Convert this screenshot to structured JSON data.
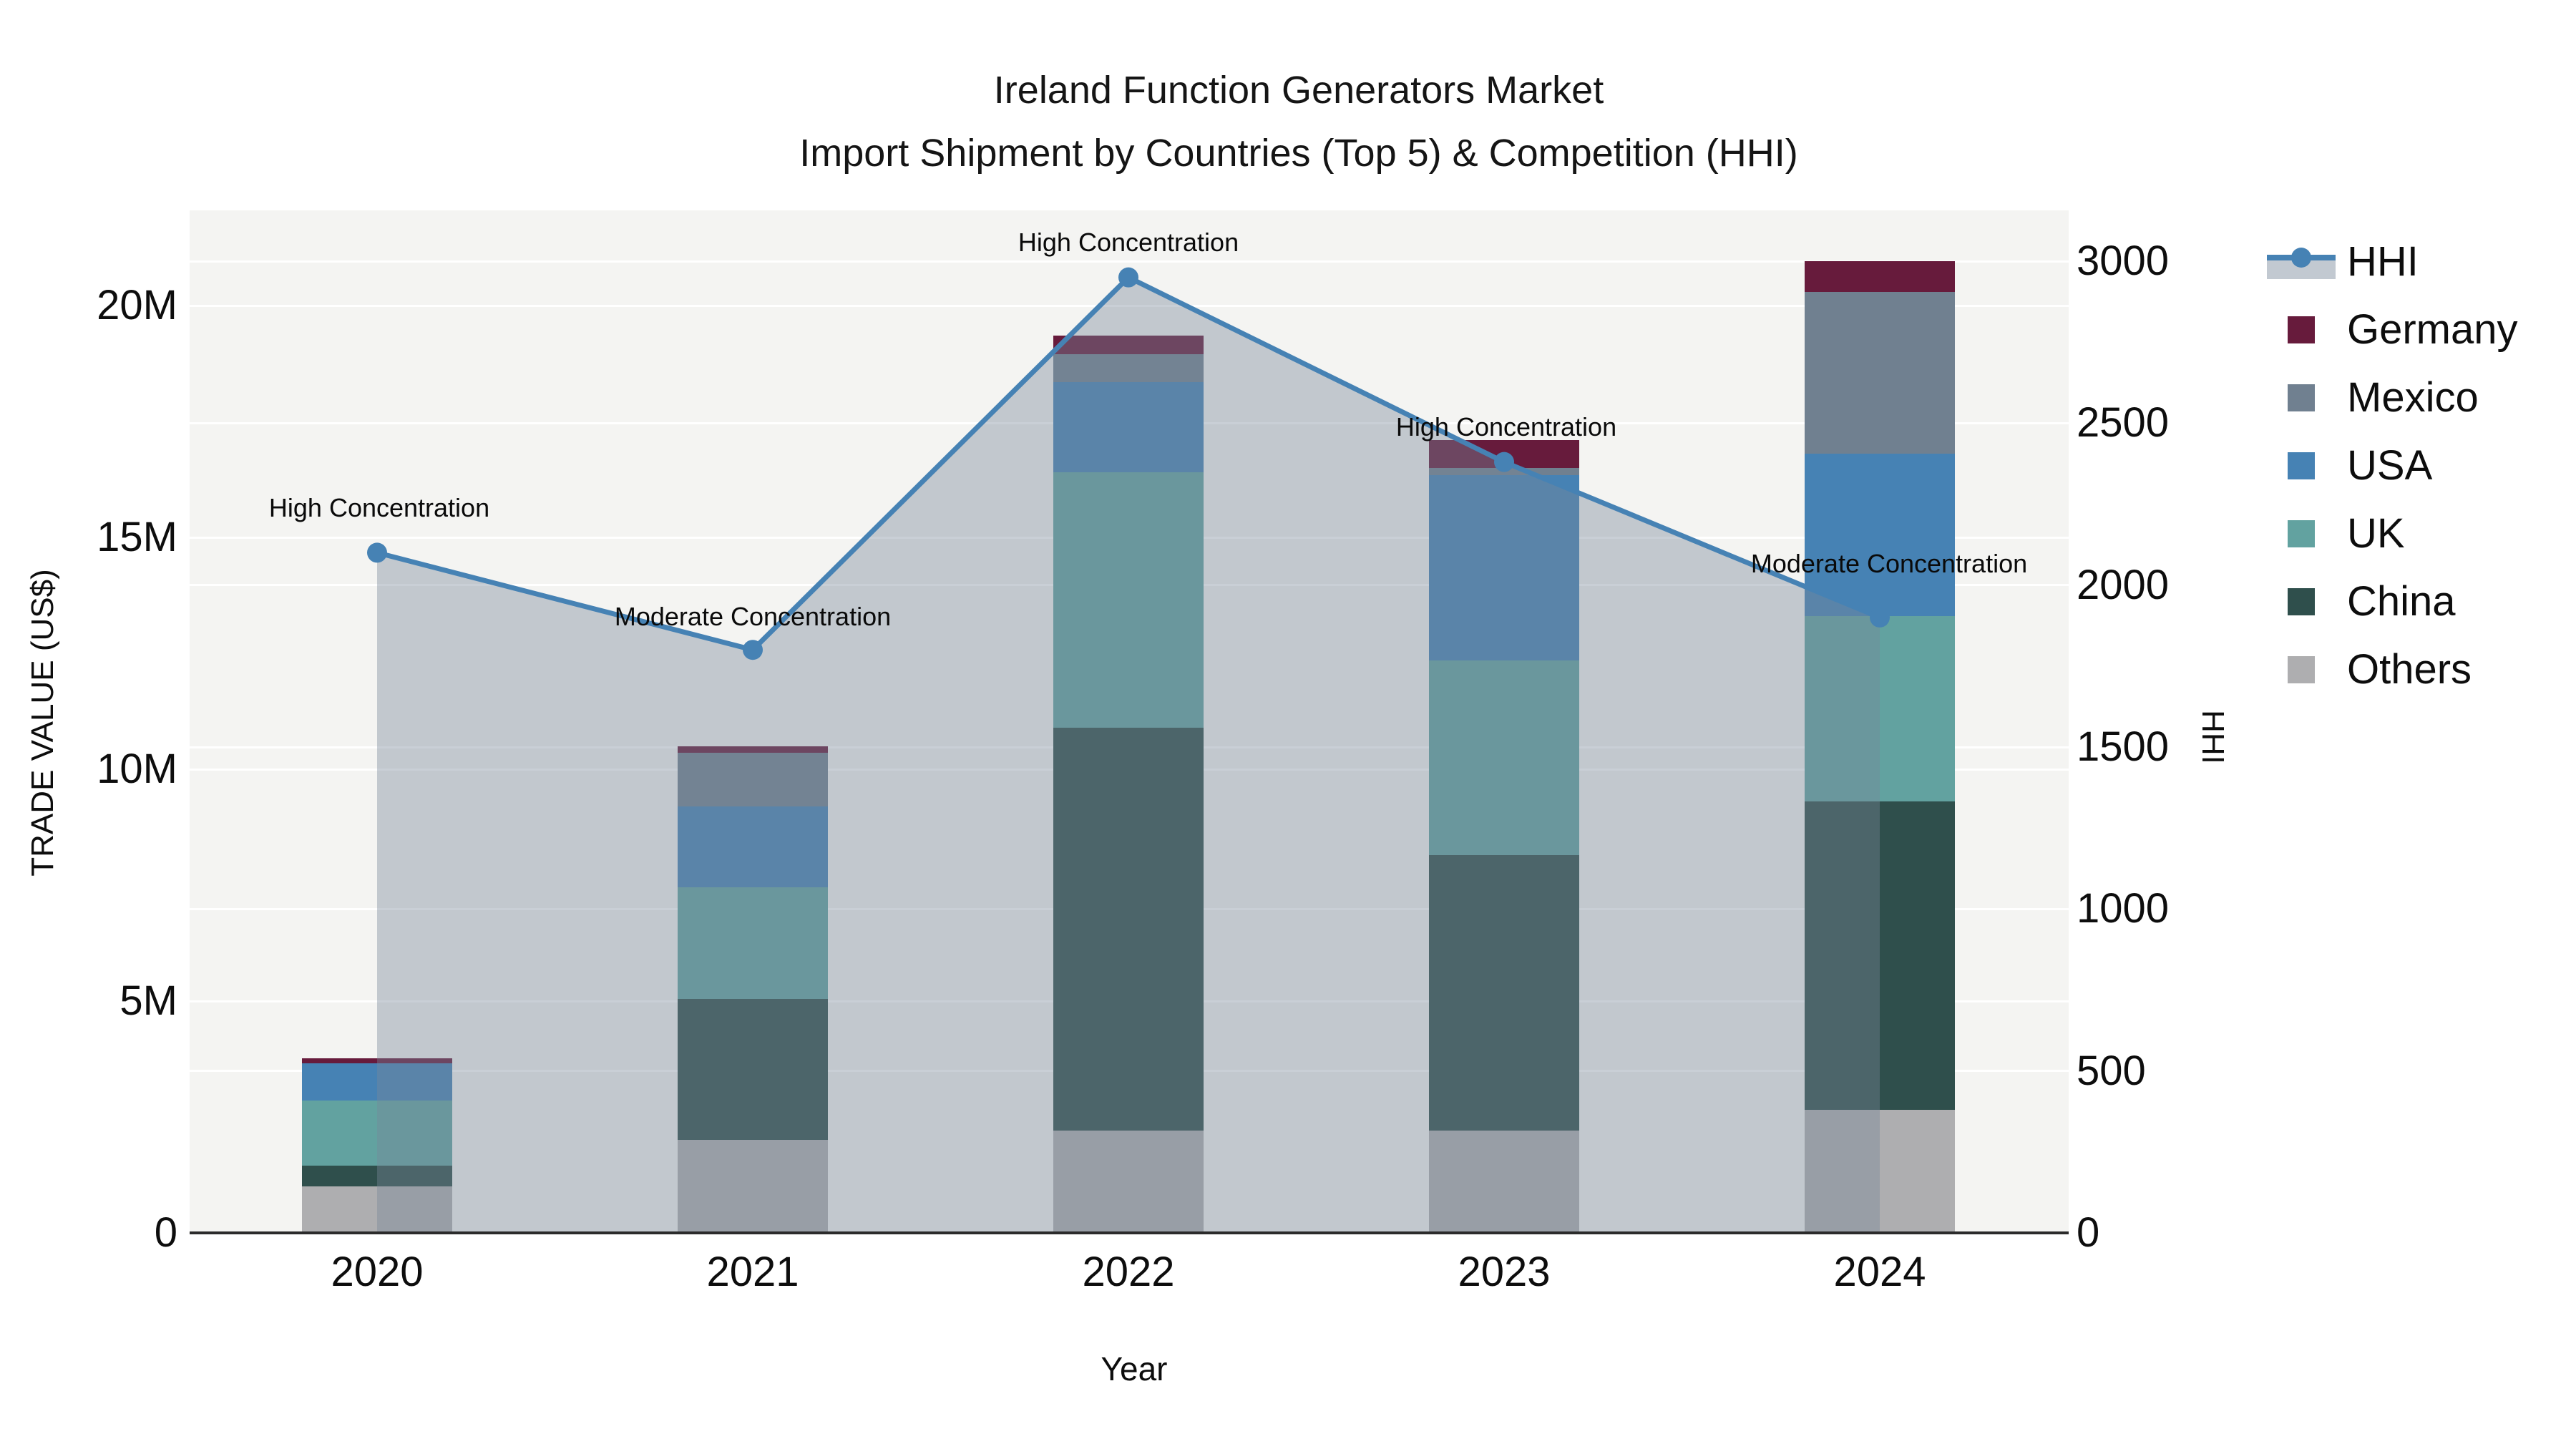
{
  "title": {
    "line1": "Ireland Function Generators Market",
    "line2": "Import Shipment by Countries (Top 5) & Competition (HHI)"
  },
  "axes": {
    "y_left": {
      "label": "TRADE VALUE (US$)",
      "ticks": [
        {
          "label": "0",
          "value": 0
        },
        {
          "label": "5M",
          "value": 5
        },
        {
          "label": "10M",
          "value": 10
        },
        {
          "label": "15M",
          "value": 15
        },
        {
          "label": "20M",
          "value": 20
        }
      ]
    },
    "y_right": {
      "label": "HHI",
      "ticks": [
        {
          "label": "0",
          "value": 0
        },
        {
          "label": "500",
          "value": 500
        },
        {
          "label": "1000",
          "value": 1000
        },
        {
          "label": "1500",
          "value": 1500
        },
        {
          "label": "2000",
          "value": 2000
        },
        {
          "label": "2500",
          "value": 2500
        },
        {
          "label": "3000",
          "value": 3000
        }
      ]
    },
    "x": {
      "label": "Year"
    }
  },
  "legend": {
    "items": [
      {
        "label": "HHI",
        "type": "line",
        "color": "#4682b4"
      },
      {
        "label": "Germany",
        "type": "swatch",
        "color": "#671b3c"
      },
      {
        "label": "Mexico",
        "type": "swatch",
        "color": "#708090"
      },
      {
        "label": "USA",
        "type": "swatch",
        "color": "#4682b4"
      },
      {
        "label": "UK",
        "type": "swatch",
        "color": "#62a2a0"
      },
      {
        "label": "China",
        "type": "swatch",
        "color": "#2f4f4c"
      },
      {
        "label": "Others",
        "type": "swatch",
        "color": "#aeaeb0"
      }
    ]
  },
  "chart_data": {
    "type": "bar",
    "subtype": "stacked bars (trade value, US$ millions) with HHI line + shaded area overlay on secondary axis",
    "categories": [
      "2020",
      "2021",
      "2022",
      "2023",
      "2024"
    ],
    "units_left": "US$ millions",
    "series": [
      {
        "name": "Others",
        "color": "#aeaeb0",
        "values": [
          1.0,
          2.0,
          2.2,
          2.2,
          2.65
        ]
      },
      {
        "name": "China",
        "color": "#2f4f4c",
        "values": [
          0.45,
          3.05,
          8.7,
          5.95,
          6.65
        ]
      },
      {
        "name": "UK",
        "color": "#62a2a0",
        "values": [
          1.4,
          2.4,
          5.5,
          4.2,
          4.0
        ]
      },
      {
        "name": "USA",
        "color": "#4682b4",
        "values": [
          0.8,
          1.75,
          1.95,
          4.0,
          3.5
        ]
      },
      {
        "name": "Mexico",
        "color": "#708090",
        "values": [
          0.0,
          1.15,
          0.6,
          0.15,
          3.5
        ]
      },
      {
        "name": "Germany",
        "color": "#671b3c",
        "values": [
          0.12,
          0.15,
          0.4,
          0.6,
          0.65
        ]
      }
    ],
    "hhi_line": {
      "name": "HHI",
      "color": "#4682b4",
      "area_fill": "rgba(119,136,153,0.40)",
      "values": [
        2100,
        1800,
        2950,
        2380,
        1900
      ]
    },
    "annotations": [
      {
        "category": "2020",
        "text": "High Concentration"
      },
      {
        "category": "2021",
        "text": "Moderate Concentration"
      },
      {
        "category": "2022",
        "text": "High Concentration"
      },
      {
        "category": "2023",
        "text": "High Concentration"
      },
      {
        "category": "2024",
        "text": "Moderate Concentration"
      }
    ],
    "ylim_left": [
      0,
      22
    ],
    "ylim_right": [
      0,
      3000
    ],
    "grid": true,
    "legend_position": "right of plot"
  }
}
